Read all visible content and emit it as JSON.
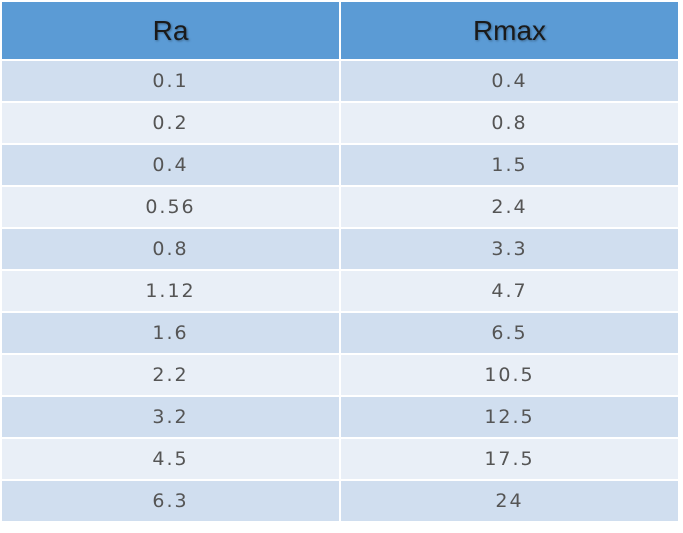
{
  "table": {
    "header": [
      "Ra",
      "Rmax"
    ],
    "rows": [
      [
        "0.1",
        "0.4"
      ],
      [
        "0.2",
        "0.8"
      ],
      [
        "0.4",
        "1.5"
      ],
      [
        "0.56",
        "2.4"
      ],
      [
        "0.8",
        "3.3"
      ],
      [
        "1.12",
        "4.7"
      ],
      [
        "1.6",
        "6.5"
      ],
      [
        "2.2",
        "10.5"
      ],
      [
        "3.2",
        "12.5"
      ],
      [
        "4.5",
        "17.5"
      ],
      [
        "6.3",
        "24"
      ]
    ]
  }
}
